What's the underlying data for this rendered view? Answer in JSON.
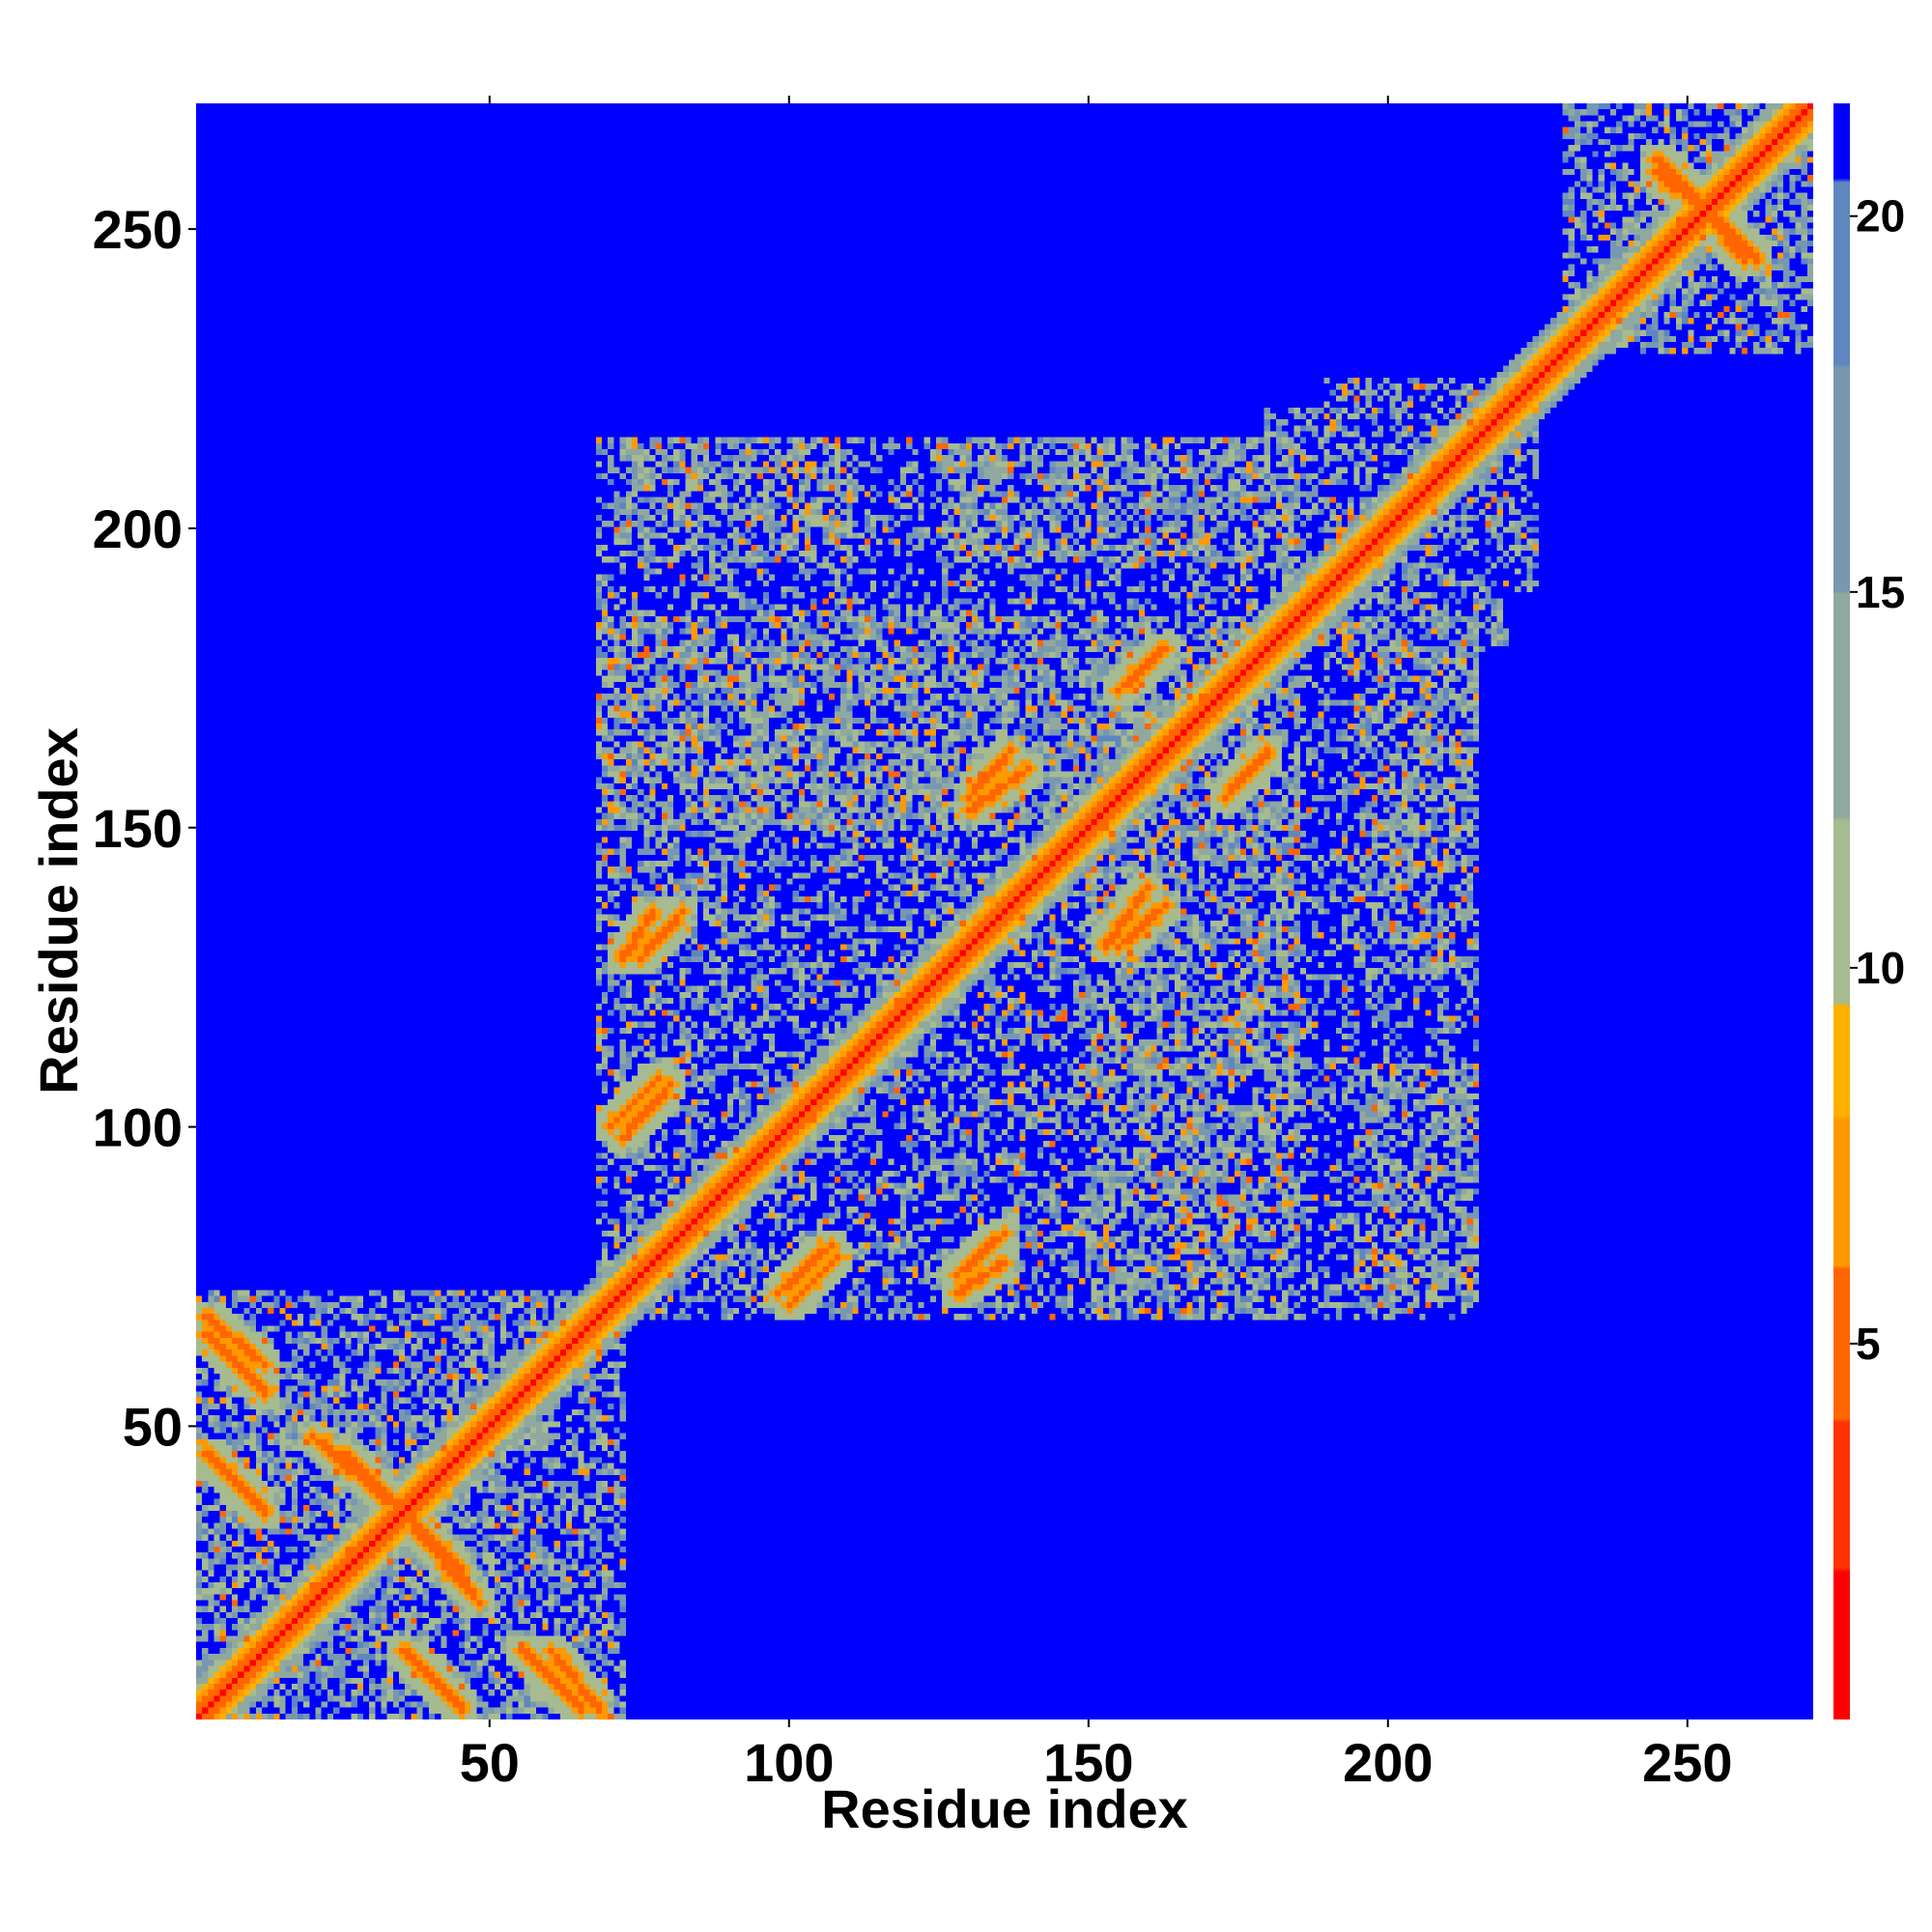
{
  "chart_data": {
    "type": "heatmap",
    "title": "",
    "xlabel": "Residue index",
    "ylabel": "Residue index",
    "xlim": [
      1,
      271
    ],
    "ylim": [
      1,
      271
    ],
    "x_ticks": [
      50,
      100,
      150,
      200,
      250
    ],
    "y_ticks": [
      50,
      100,
      150,
      200,
      250
    ],
    "colorbar": {
      "ticks": [
        5,
        10,
        15,
        20
      ],
      "range": [
        0,
        21.5
      ],
      "colors": [
        "#ff0000",
        "#ff3300",
        "#ff6600",
        "#ff9900",
        "#ffb000",
        "#a6bb8f",
        "#8fa99f",
        "#7897b0",
        "#5f86bf",
        "#0000ff"
      ],
      "bounds": [
        0,
        2,
        4,
        6,
        8,
        9.5,
        12,
        15,
        18,
        20.5,
        21.5
      ]
    },
    "matrix_description_values": {
      "background_distance": 21,
      "diagonal_distance": 3.8
    },
    "contact_blocks": [
      {
        "x": [
          1,
          72
        ],
        "y": [
          1,
          72
        ],
        "level": 0.55
      },
      {
        "x": [
          230,
          271
        ],
        "y": [
          230,
          271
        ],
        "level": 0.5
      },
      {
        "x": [
          68,
          185
        ],
        "y": [
          68,
          185
        ],
        "level": 0.45
      },
      {
        "x": [
          68,
          110
        ],
        "y": [
          150,
          215
        ],
        "level": 0.35
      },
      {
        "x": [
          110,
          185
        ],
        "y": [
          150,
          215
        ],
        "level": 0.35
      },
      {
        "x": [
          195,
          215
        ],
        "y": [
          70,
          110
        ],
        "level": 0.4
      },
      {
        "x": [
          195,
          215
        ],
        "y": [
          125,
          180
        ],
        "level": 0.4
      },
      {
        "x": [
          190,
          220
        ],
        "y": [
          180,
          225
        ],
        "level": 0.45
      }
    ],
    "secondary_bands": [
      {
        "x0": 2,
        "y0": 68,
        "x1": 12,
        "y1": 60,
        "width": 2
      },
      {
        "x0": 2,
        "y0": 45,
        "x1": 12,
        "y1": 35,
        "width": 2
      },
      {
        "x0": 20,
        "y0": 48,
        "x1": 35,
        "y1": 35,
        "width": 2
      },
      {
        "x0": 35,
        "y0": 12,
        "x1": 45,
        "y1": 2,
        "width": 2
      },
      {
        "x0": 55,
        "y0": 12,
        "x1": 65,
        "y1": 2,
        "width": 2
      },
      {
        "x0": 35,
        "y0": 35,
        "x1": 45,
        "y1": 25,
        "width": 2
      },
      {
        "x0": 72,
        "y0": 98,
        "x1": 80,
        "y1": 107,
        "width": 2
      },
      {
        "x0": 75,
        "y0": 128,
        "x1": 82,
        "y1": 136,
        "width": 2
      },
      {
        "x0": 100,
        "y0": 70,
        "x1": 108,
        "y1": 78,
        "width": 2
      },
      {
        "x0": 128,
        "y0": 72,
        "x1": 136,
        "y1": 77,
        "width": 2
      },
      {
        "x0": 130,
        "y0": 153,
        "x1": 140,
        "y1": 160,
        "width": 2
      },
      {
        "x0": 155,
        "y0": 130,
        "x1": 163,
        "y1": 137,
        "width": 2
      },
      {
        "x0": 155,
        "y0": 173,
        "x1": 163,
        "y1": 180,
        "width": 2
      },
      {
        "x0": 173,
        "y0": 155,
        "x1": 180,
        "y1": 162,
        "width": 2
      },
      {
        "x0": 245,
        "y0": 262,
        "x1": 255,
        "y1": 252,
        "width": 2
      },
      {
        "x0": 252,
        "y0": 255,
        "x1": 260,
        "y1": 245,
        "width": 2
      }
    ]
  }
}
